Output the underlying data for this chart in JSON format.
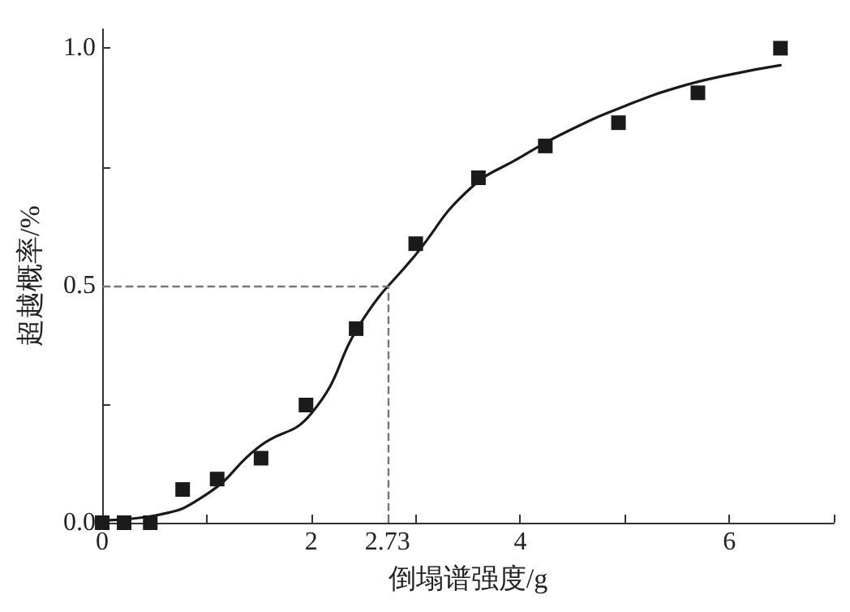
{
  "chart_data": {
    "type": "scatter",
    "xlabel": "倒塌谱强度/g",
    "ylabel": "超越概率/%",
    "xlim": [
      0,
      7
    ],
    "ylim": [
      0,
      1.04
    ],
    "xticks": [
      0,
      {
        "value": 1,
        "label": null
      },
      2,
      {
        "value": 2.73,
        "label": "2.73"
      },
      {
        "value": 3,
        "label": null
      },
      4,
      {
        "value": 5,
        "label": null
      },
      6,
      {
        "value": 7,
        "label": null
      }
    ],
    "yticks": [
      {
        "value": 0,
        "label": "0.0"
      },
      {
        "value": 0.25,
        "label": null
      },
      {
        "value": 0.5,
        "label": "0.5"
      },
      {
        "value": 0.75,
        "label": null
      },
      {
        "value": 1,
        "label": "1.0"
      }
    ],
    "grid": false,
    "marker": "square",
    "series": [
      {
        "color": "#1a1a1a",
        "x": [
          0,
          0.21,
          0.46,
          0.77,
          1.1,
          1.52,
          1.95,
          2.43,
          3.0,
          3.6,
          4.24,
          4.94,
          5.7,
          6.49
        ],
        "values": [
          0,
          0,
          0,
          0.07,
          0.092,
          0.136,
          0.248,
          0.409,
          0.588,
          0.727,
          0.794,
          0.843,
          0.906,
          1.0
        ]
      },
      {
        "type": "line",
        "color": "#1a1a1a",
        "marker": "none",
        "line_style": "solid",
        "x": [
          0,
          0.5,
          1.0,
          1.5,
          2.0,
          2.5,
          3.0,
          3.5,
          4.0,
          4.5,
          5.0,
          5.5,
          6.0,
          6.49
        ],
        "values": [
          0.005,
          0.015,
          0.06,
          0.16,
          0.23,
          0.43,
          0.565,
          0.7,
          0.77,
          0.83,
          0.878,
          0.917,
          0.944,
          0.964
        ]
      }
    ],
    "ref_lines": [
      {
        "axis": "x",
        "value": 2.73,
        "color": "#777777",
        "line_style": "dashed"
      },
      {
        "axis": "y",
        "value": 0.5,
        "color": "#777777",
        "line_style": "dashed"
      }
    ]
  }
}
